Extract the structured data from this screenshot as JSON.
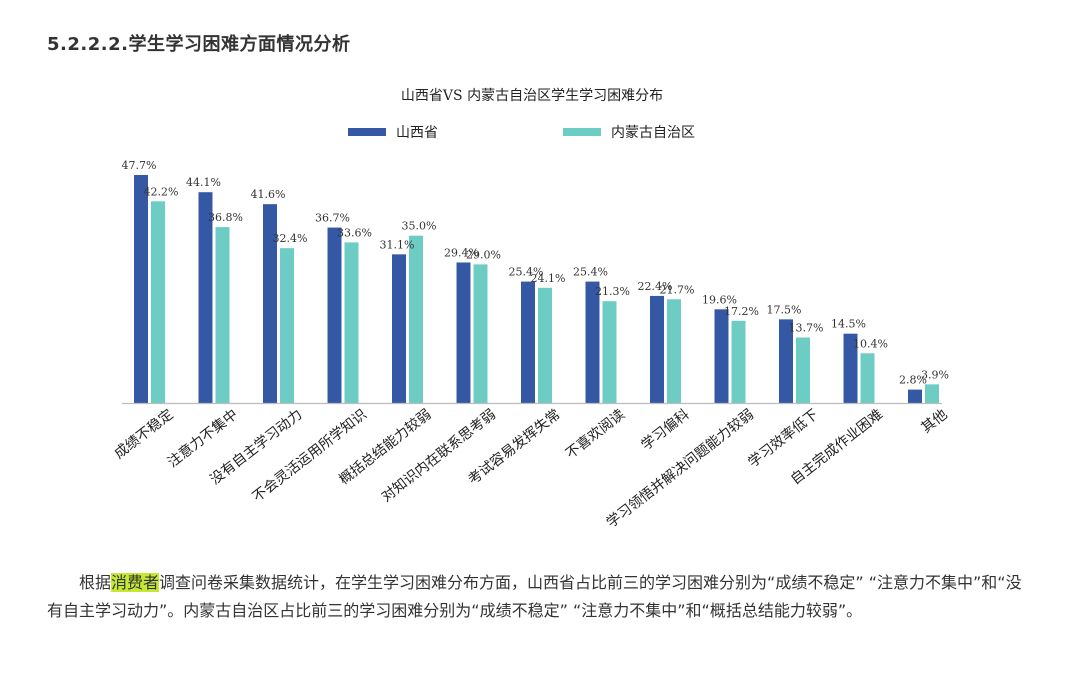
{
  "heading": "5.2.2.2.学生学习困难方面情况分析",
  "chart_data": {
    "type": "bar",
    "title": "山西省VS 内蒙古自治区学生学习困难分布",
    "categories": [
      "成绩不稳定",
      "注意力不集中",
      "没有自主学习动力",
      "不会灵活运用所学知识",
      "概括总结能力较弱",
      "对知识内在联系思考弱",
      "考试容易发挥失常",
      "不喜欢阅读",
      "学习偏科",
      "学习领悟并解决问题能力较弱",
      "学习效率低下",
      "自主完成作业困难",
      "其他"
    ],
    "series": [
      {
        "name": "山西省",
        "color": "#3458a4",
        "values": [
          47.7,
          44.1,
          41.6,
          36.7,
          31.1,
          29.4,
          25.4,
          25.4,
          22.4,
          19.6,
          17.5,
          14.5,
          2.8
        ]
      },
      {
        "name": "内蒙古自治区",
        "color": "#6dcdc4",
        "values": [
          42.2,
          36.8,
          32.4,
          33.6,
          35.0,
          29.0,
          24.1,
          21.3,
          21.7,
          17.2,
          13.7,
          10.4,
          3.9
        ]
      }
    ],
    "value_suffix": "%",
    "ylim": [
      0,
      50
    ],
    "legend_position": "top",
    "grid": false
  },
  "paragraph": {
    "before": "根据",
    "highlight": "消费者",
    "after": "调查问卷采集数据统计，在学生学习困难分布方面，山西省占比前三的学习困难分别为“成绩不稳定” “注意力不集中”和“没有自主学习动力”。内蒙古自治区占比前三的学习困难分别为“成绩不稳定” “注意力不集中”和“概括总结能力较弱”。"
  }
}
